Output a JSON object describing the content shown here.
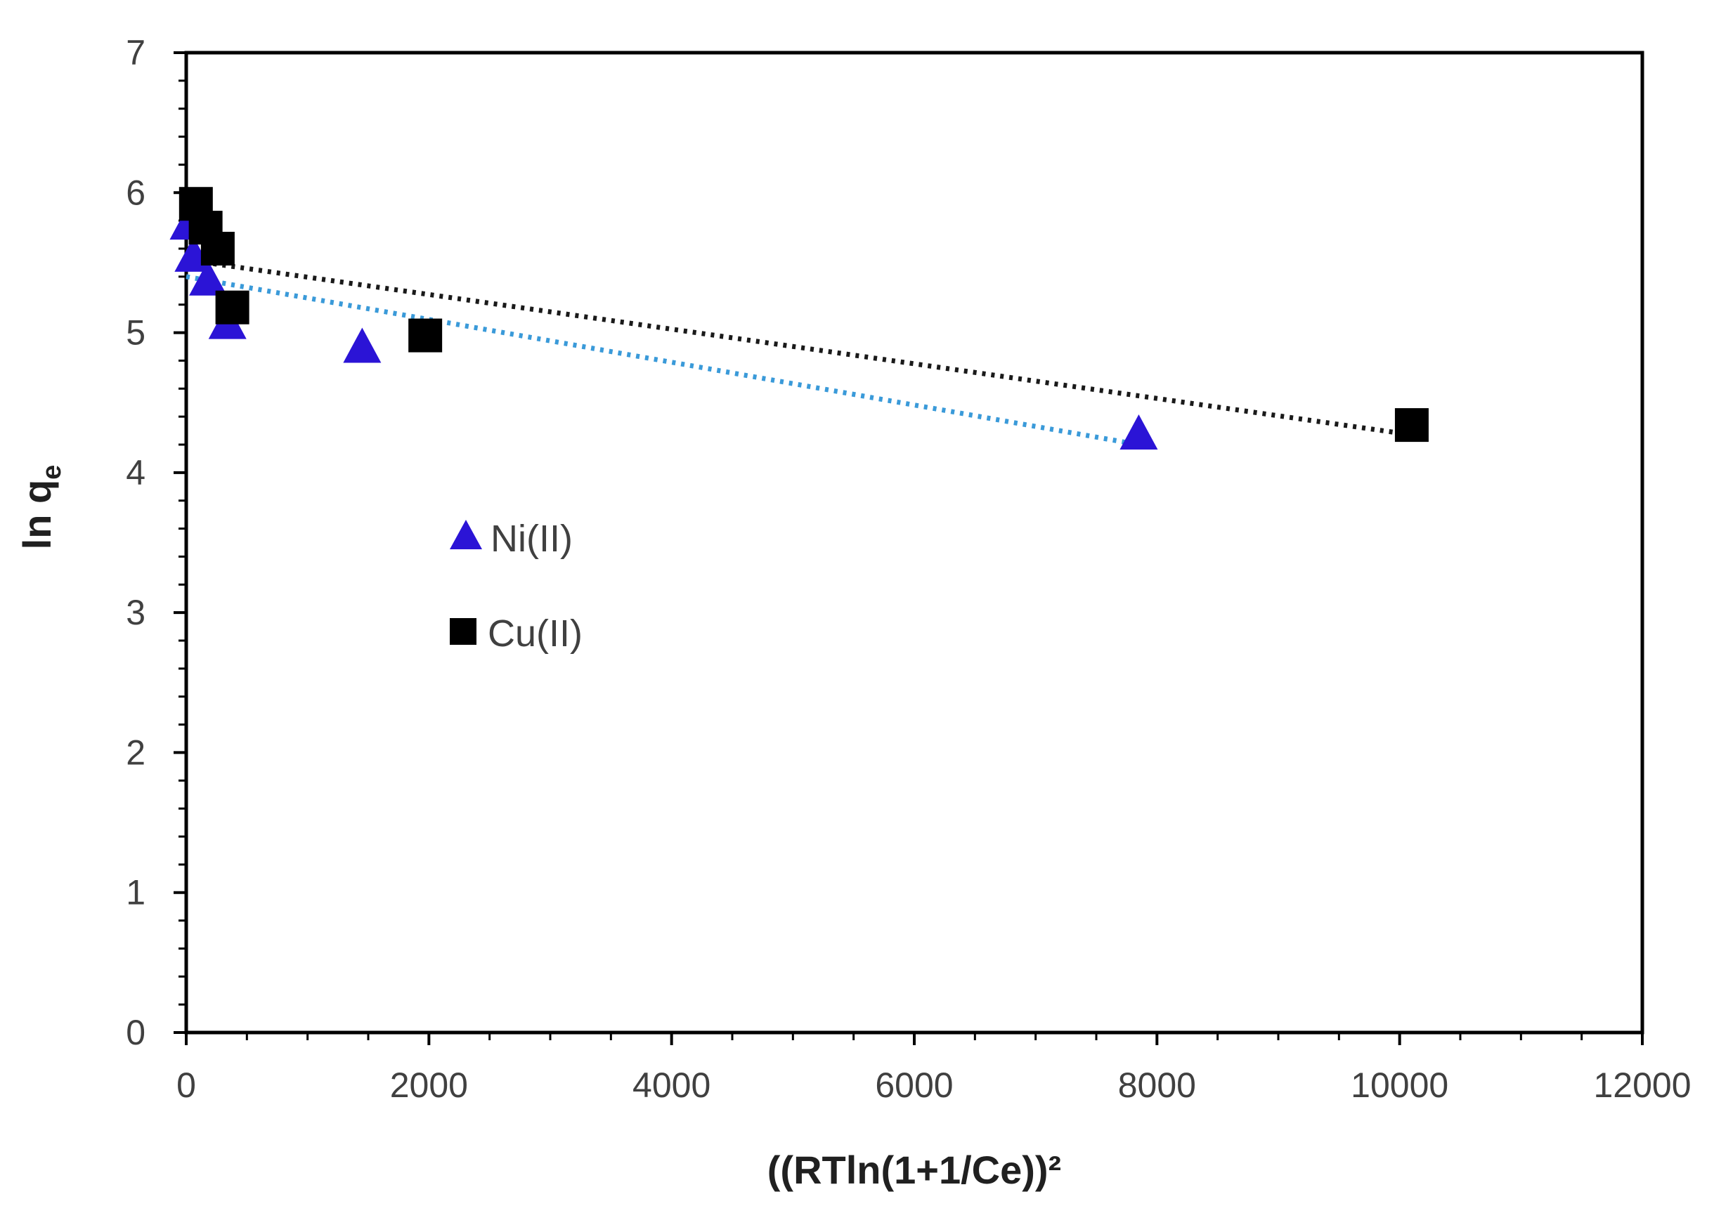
{
  "chart_data": {
    "type": "scatter",
    "title": "",
    "xlabel": "((RTln(1+1/Ce))²",
    "ylabel": "ln q",
    "ylabel_subscript": "e",
    "xlim": [
      0,
      12000
    ],
    "ylim": [
      0,
      7
    ],
    "x_ticks": [
      0,
      2000,
      4000,
      6000,
      8000,
      10000,
      12000
    ],
    "y_ticks": [
      0,
      1,
      2,
      3,
      4,
      5,
      6,
      7
    ],
    "x_tick_labels": [
      "0",
      "2000",
      "4000",
      "6000",
      "8000",
      "10000",
      "12000"
    ],
    "y_tick_labels": [
      "0",
      "1",
      "2",
      "3",
      "4",
      "5",
      "6",
      "7"
    ],
    "grid": false,
    "legend_position": "center-left inside plot",
    "series": [
      {
        "name": "Ni(II)",
        "marker": "triangle",
        "color": "#2b14d6",
        "points": [
          {
            "x": 20,
            "y": 5.78
          },
          {
            "x": 60,
            "y": 5.55
          },
          {
            "x": 180,
            "y": 5.38
          },
          {
            "x": 340,
            "y": 5.07
          },
          {
            "x": 1450,
            "y": 4.9
          },
          {
            "x": 7850,
            "y": 4.28
          }
        ],
        "trendline": {
          "color": "#3a9ad9",
          "style": "dotted",
          "x": [
            0,
            7850
          ],
          "y": [
            5.4,
            4.2
          ]
        }
      },
      {
        "name": "Cu(II)",
        "marker": "square",
        "color": "#000000",
        "points": [
          {
            "x": 80,
            "y": 5.92
          },
          {
            "x": 160,
            "y": 5.75
          },
          {
            "x": 260,
            "y": 5.6
          },
          {
            "x": 380,
            "y": 5.18
          },
          {
            "x": 1970,
            "y": 4.98
          },
          {
            "x": 10100,
            "y": 4.34
          }
        ],
        "trendline": {
          "color": "#1a1a1a",
          "style": "dotted",
          "x": [
            0,
            10100
          ],
          "y": [
            5.52,
            4.27
          ]
        }
      }
    ]
  },
  "colors": {
    "axis": "#000000",
    "tick_text": "#404040",
    "background": "#ffffff"
  }
}
